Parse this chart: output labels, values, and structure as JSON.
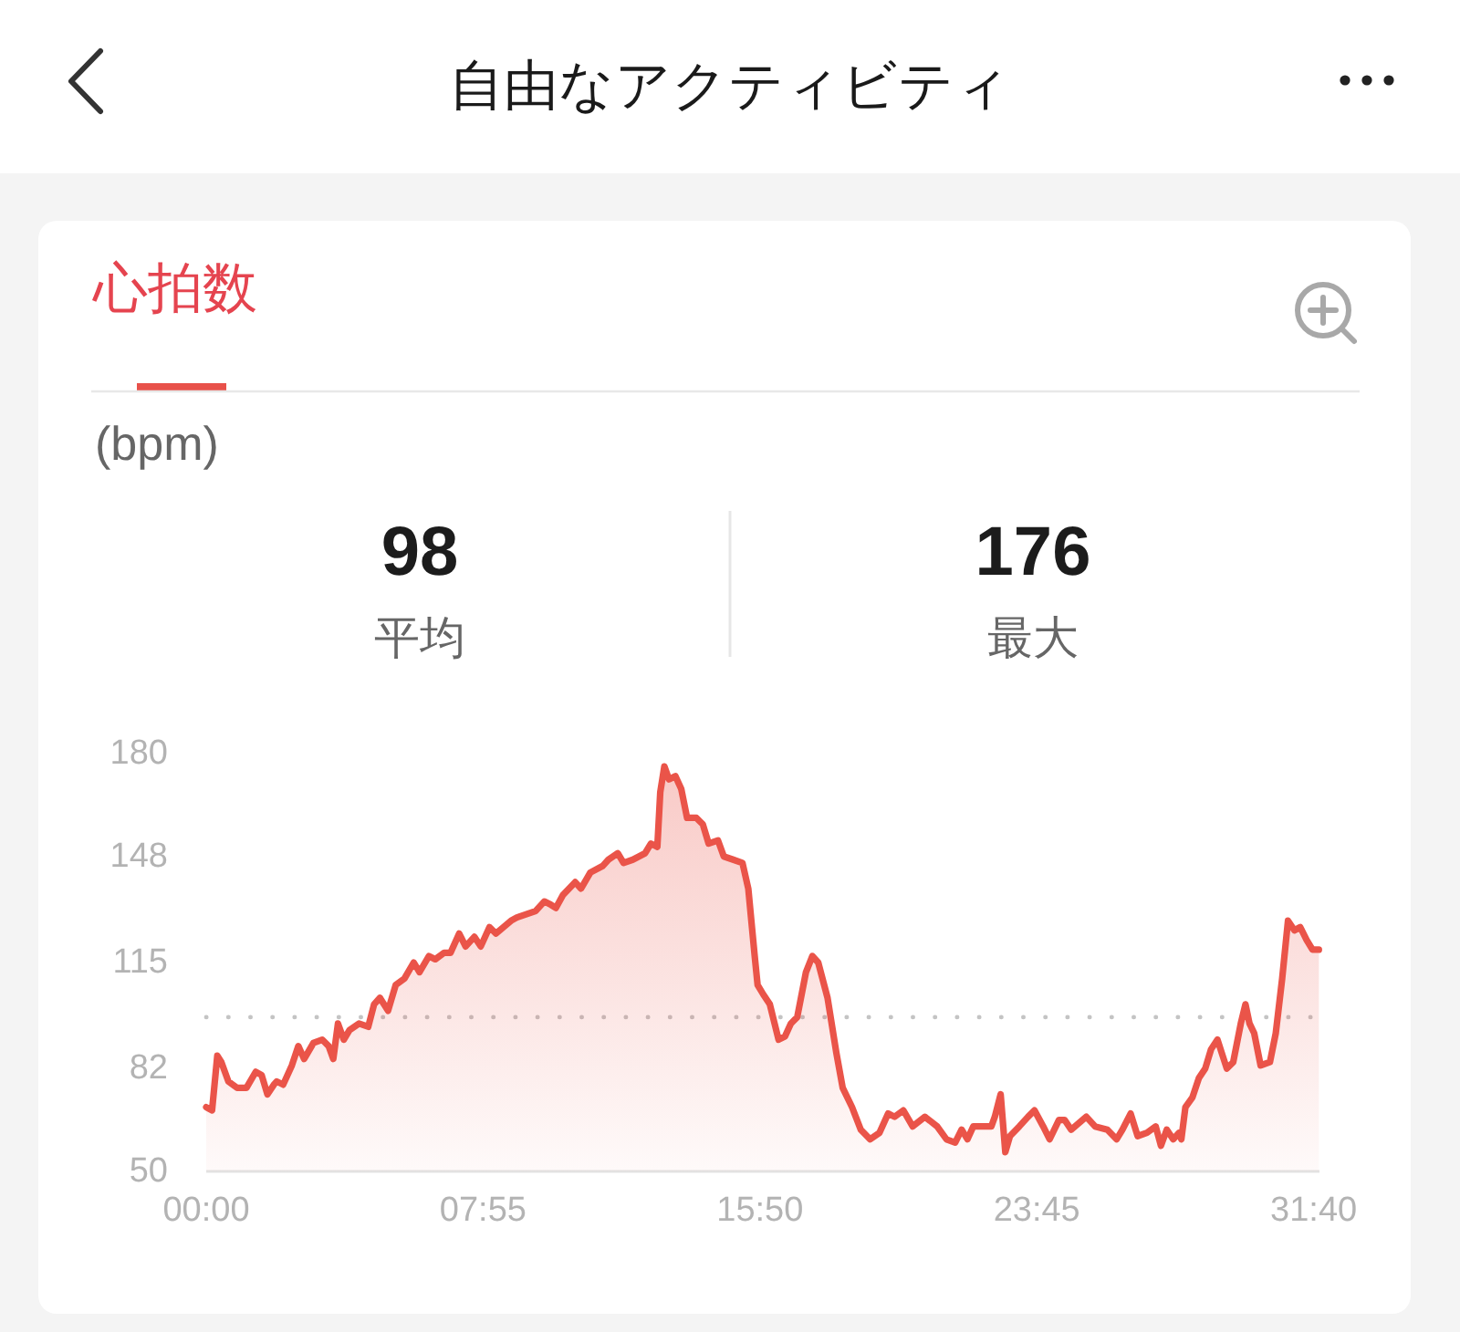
{
  "chart_data": {
    "type": "area",
    "title": "自由なアクティビティ",
    "subtitle": "心拍数",
    "annotations": [
      "(bpm)",
      "98",
      "平均",
      "176",
      "最大"
    ],
    "x": [
      0,
      10,
      19,
      26,
      38,
      53,
      69,
      85,
      95,
      105,
      116,
      121,
      132,
      147,
      158,
      168,
      184,
      199,
      210,
      218,
      226,
      236,
      246,
      262,
      278,
      288,
      298,
      312,
      325,
      340,
      356,
      366,
      382,
      393,
      408,
      419,
      434,
      445,
      460,
      471,
      486,
      497,
      523,
      533,
      549,
      565,
      580,
      591,
      600,
      612,
      633,
      643,
      659,
      680,
      690,
      706,
      716,
      732,
      753,
      763,
      774,
      779,
      786,
      794,
      805,
      815,
      825,
      841,
      852,
      862,
      878,
      888,
      904,
      920,
      930,
      941,
      946,
      956,
      967,
      982,
      993,
      1003,
      1014,
      1029,
      1040,
      1050,
      1066,
      1081,
      1092,
      1108,
      1123,
      1139,
      1155,
      1170,
      1181,
      1196,
      1212,
      1233,
      1254,
      1270,
      1285,
      1296,
      1306,
      1316,
      1337,
      1347,
      1353,
      1363,
      1371,
      1379,
      1395,
      1410,
      1421,
      1436,
      1447,
      1463,
      1473,
      1484,
      1510,
      1525,
      1546,
      1562,
      1572,
      1586,
      1598,
      1614,
      1629,
      1638,
      1648,
      1659,
      1669,
      1673,
      1680,
      1692,
      1703,
      1714,
      1724,
      1735,
      1751,
      1762,
      1775,
      1783,
      1790,
      1798,
      1809,
      1825,
      1835,
      1846,
      1856,
      1867,
      1877,
      1888,
      1898,
      1909
    ],
    "values": [
      70,
      69,
      86,
      84,
      78,
      76,
      76,
      81,
      80,
      74,
      77,
      78,
      77,
      83,
      89,
      85,
      90,
      91,
      89,
      85,
      96,
      91,
      94,
      96,
      95,
      102,
      104,
      100,
      108,
      110,
      115,
      112,
      117,
      116,
      118,
      118,
      124,
      120,
      123,
      120,
      126,
      124,
      128,
      129,
      130,
      131,
      134,
      133,
      132,
      136,
      140,
      138,
      143,
      145,
      147,
      149,
      146,
      147,
      149,
      152,
      151,
      168,
      176,
      172,
      173,
      169,
      160,
      160,
      158,
      152,
      153,
      148,
      147,
      146,
      138,
      117,
      108,
      105,
      102,
      91,
      92,
      96,
      98,
      112,
      117,
      115,
      104,
      87,
      76,
      70,
      63,
      60,
      62,
      68,
      67,
      69,
      64,
      67,
      64,
      60,
      59,
      63,
      60,
      64,
      64,
      64,
      67,
      74,
      56,
      61,
      64,
      67,
      69,
      64,
      60,
      66,
      66,
      63,
      67,
      64,
      63,
      60,
      63,
      68,
      61,
      62,
      64,
      58,
      63,
      60,
      62,
      60,
      70,
      73,
      79,
      82,
      88,
      91,
      82,
      84,
      96,
      102,
      96,
      93,
      83,
      84,
      93,
      110,
      128,
      125,
      126,
      122,
      119,
      119
    ],
    "color": "#ea5449",
    "xlim": [
      0,
      1910
    ],
    "ylim": [
      50,
      180
    ],
    "xticks": [
      {
        "value": 0,
        "label": "00:00"
      },
      {
        "value": 475,
        "label": "07:55"
      },
      {
        "value": 950,
        "label": "15:50"
      },
      {
        "value": 1425,
        "label": "23:45"
      },
      {
        "value": 1900,
        "label": "31:40"
      }
    ],
    "yticks": [
      50,
      82,
      115,
      148,
      180
    ],
    "ref_lines": [
      {
        "axis": "y",
        "value": 98,
        "line_style": "dotted",
        "color": "#c4c4c4"
      }
    ]
  }
}
